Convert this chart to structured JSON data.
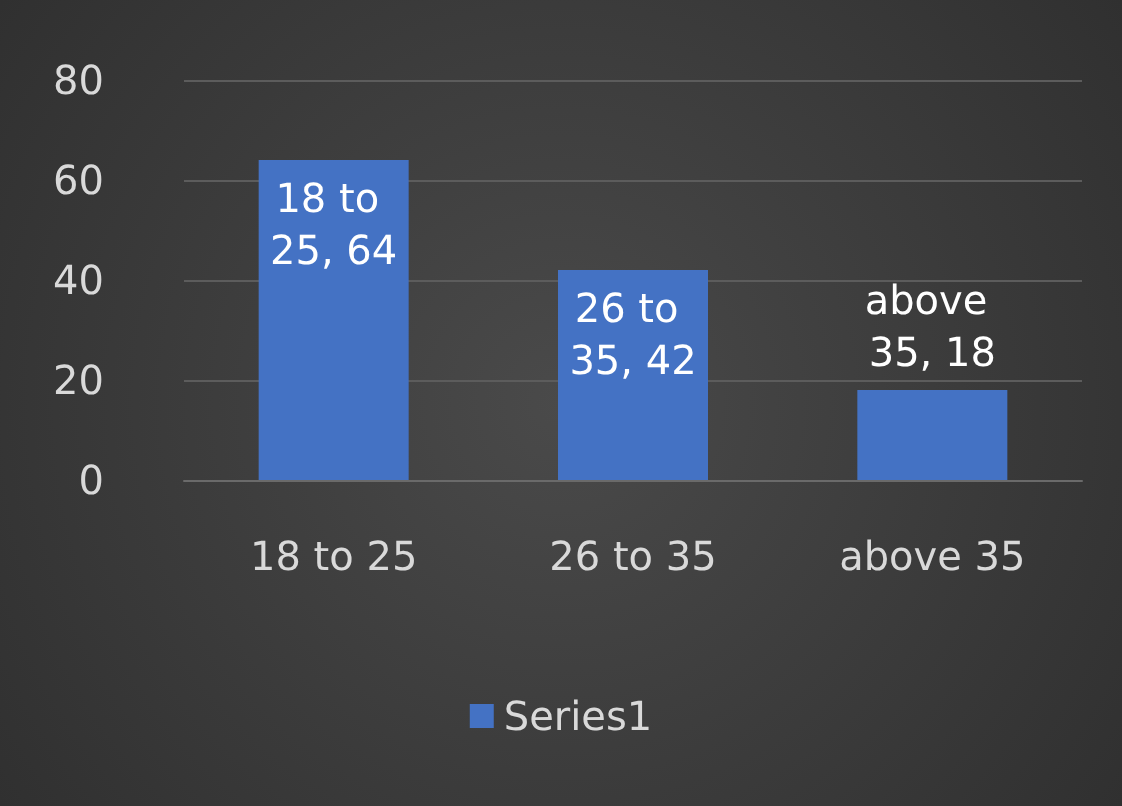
{
  "chart_data": {
    "type": "bar",
    "categories": [
      "18 to 25",
      "26 to 35",
      "above 35"
    ],
    "series": [
      {
        "name": "Series1",
        "color": "#4472c4",
        "values": [
          64,
          42,
          18
        ],
        "value_labels": [
          "18 to 25, 64",
          "26 to 35, 42",
          "above 35, 18"
        ]
      }
    ],
    "ylim": [
      0,
      80
    ],
    "yticks": [
      0,
      20,
      40,
      60,
      80
    ],
    "grid": "y",
    "legend": "bottom"
  }
}
